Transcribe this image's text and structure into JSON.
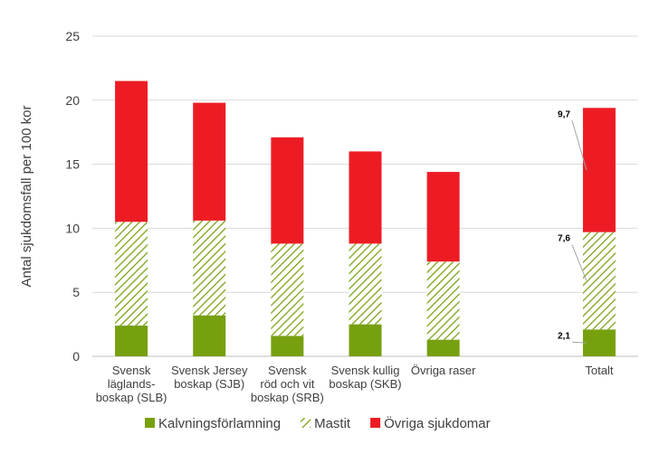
{
  "chart_data": {
    "type": "stacked_bar",
    "y_label": "Antal sjukdomsfall per 100 kor",
    "categories": [
      "Svensk\nläglands-\nboskap (SLB)",
      "Svensk Jersey\nboskap (SJB)",
      "Svensk\nröd och vit\nboskap (SRB)",
      "Svensk kullig\nboskap (SKB)",
      "Övriga raser",
      null,
      "Totalt"
    ],
    "series": [
      {
        "name": "Kalvningsförlamning",
        "color": "#77a00f",
        "pattern": "solid",
        "values": [
          2.4,
          3.2,
          1.6,
          2.5,
          1.3,
          null,
          2.1
        ],
        "value_labels": [
          null,
          null,
          null,
          null,
          null,
          null,
          "2,1"
        ]
      },
      {
        "name": "Mastit",
        "color": "#77a00f",
        "pattern": "hatch",
        "values": [
          8.1,
          7.4,
          7.2,
          6.3,
          6.1,
          null,
          7.6
        ],
        "value_labels": [
          null,
          null,
          null,
          null,
          null,
          null,
          "7,6"
        ]
      },
      {
        "name": "Övriga sjukdomar",
        "color": "#ed1c24",
        "pattern": "solid",
        "values": [
          11.0,
          9.2,
          8.3,
          7.2,
          7.0,
          null,
          9.7
        ],
        "value_labels": [
          null,
          null,
          null,
          null,
          null,
          null,
          "9,7"
        ]
      }
    ],
    "ylim": [
      0,
      25
    ],
    "yticks": [
      0,
      5,
      10,
      15,
      20,
      25
    ],
    "grid": true,
    "legend": "bottom"
  }
}
